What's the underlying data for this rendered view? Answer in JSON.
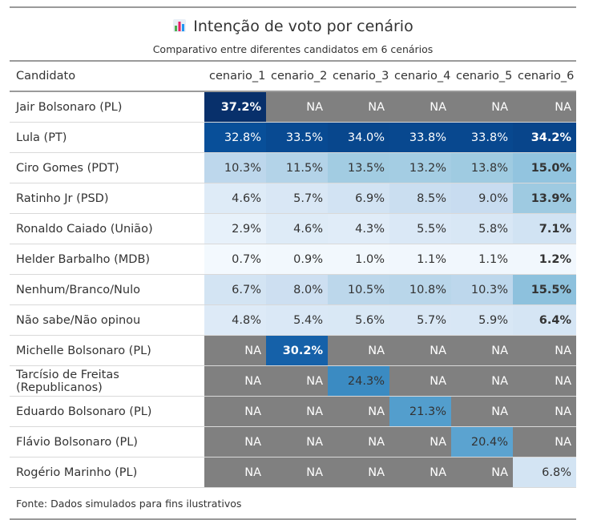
{
  "header": {
    "title": "Intenção de voto por cenário",
    "subtitle": "Comparativo entre diferentes candidatos em 6 cenários",
    "icon": "bar-chart-icon"
  },
  "source": "Fonte: Dados simulados para fins ilustrativos",
  "chart_data": {
    "type": "table",
    "columns": [
      "Candidato",
      "cenario_1",
      "cenario_2",
      "cenario_3",
      "cenario_4",
      "cenario_5",
      "cenario_6"
    ],
    "na_label": "NA",
    "rows": [
      {
        "candidato": "Jair Bolsonaro (PL)",
        "values": [
          37.2,
          null,
          null,
          null,
          null,
          null
        ]
      },
      {
        "candidato": "Lula (PT)",
        "values": [
          32.8,
          33.5,
          34.0,
          33.8,
          33.8,
          34.2
        ]
      },
      {
        "candidato": "Ciro Gomes (PDT)",
        "values": [
          10.3,
          11.5,
          13.5,
          13.2,
          13.8,
          15.0
        ]
      },
      {
        "candidato": "Ratinho Jr (PSD)",
        "values": [
          4.6,
          5.7,
          6.9,
          8.5,
          9.0,
          13.9
        ]
      },
      {
        "candidato": "Ronaldo Caiado (União)",
        "values": [
          2.9,
          4.6,
          4.3,
          5.5,
          5.8,
          7.1
        ]
      },
      {
        "candidato": "Helder Barbalho (MDB)",
        "values": [
          0.7,
          0.9,
          1.0,
          1.1,
          1.1,
          1.2
        ]
      },
      {
        "candidato": "Nenhum/Branco/Nulo",
        "values": [
          6.7,
          8.0,
          10.5,
          10.8,
          10.3,
          15.5
        ]
      },
      {
        "candidato": "Não sabe/Não opinou",
        "values": [
          4.8,
          5.4,
          5.6,
          5.7,
          5.9,
          6.4
        ]
      },
      {
        "candidato": "Michelle Bolsonaro (PL)",
        "values": [
          null,
          30.2,
          null,
          null,
          null,
          null
        ]
      },
      {
        "candidato": "Tarcísio de Freitas (Republicanos)",
        "values": [
          null,
          null,
          24.3,
          null,
          null,
          null
        ]
      },
      {
        "candidato": "Eduardo Bolsonaro (PL)",
        "values": [
          null,
          null,
          null,
          21.3,
          null,
          null
        ]
      },
      {
        "candidato": "Flávio Bolsonaro (PL)",
        "values": [
          null,
          null,
          null,
          null,
          20.4,
          null
        ]
      },
      {
        "candidato": "Rogério Marinho (PL)",
        "values": [
          null,
          null,
          null,
          null,
          null,
          6.8
        ]
      }
    ],
    "colors": {
      "na": "#808080",
      "low": "#f7fbff",
      "high": "#08306b"
    }
  }
}
